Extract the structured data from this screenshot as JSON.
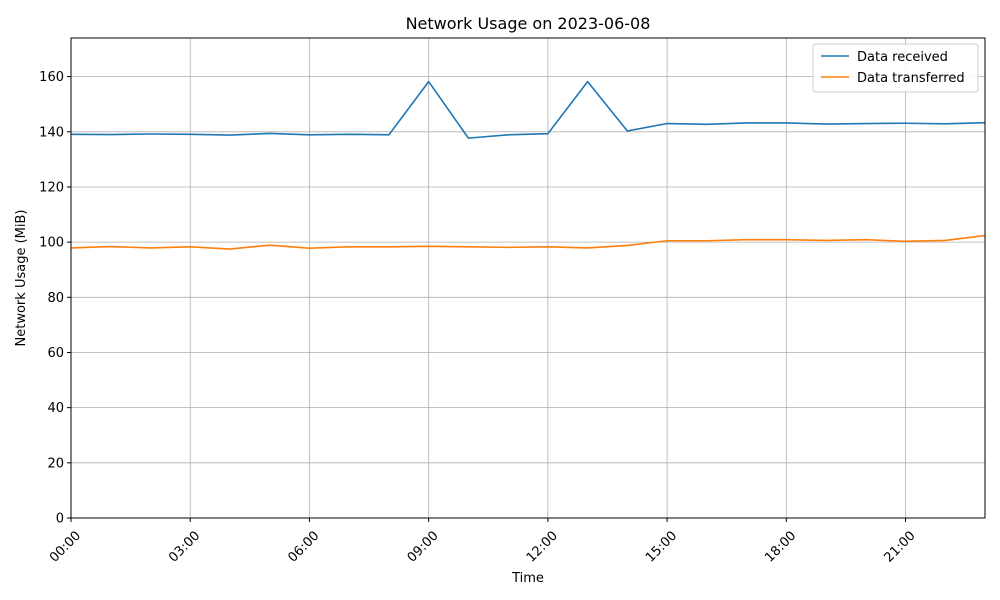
{
  "chart_data": {
    "type": "line",
    "title": "Network Usage on 2023-06-08",
    "xlabel": "Time",
    "ylabel": "Network Usage (MiB)",
    "x": [
      "00:00",
      "01:00",
      "02:00",
      "03:00",
      "04:00",
      "05:00",
      "06:00",
      "07:00",
      "08:00",
      "09:00",
      "10:00",
      "11:00",
      "12:00",
      "13:00",
      "14:00",
      "15:00",
      "16:00",
      "17:00",
      "18:00",
      "19:00",
      "20:00",
      "21:00",
      "22:00",
      "23:00"
    ],
    "x_hours": [
      0,
      1,
      2,
      3,
      4,
      5,
      6,
      7,
      8,
      9,
      10,
      11,
      12,
      13,
      14,
      15,
      16,
      17,
      18,
      19,
      20,
      21,
      22,
      23
    ],
    "xlim": [
      "00:00",
      "23:00"
    ],
    "x_ticks": [
      "00:00",
      "03:00",
      "06:00",
      "09:00",
      "12:00",
      "15:00",
      "18:00",
      "21:00"
    ],
    "ylim": [
      0,
      174
    ],
    "y_ticks": [
      0,
      20,
      40,
      60,
      80,
      100,
      120,
      140,
      160
    ],
    "grid": true,
    "legend_position": "top-right",
    "series": [
      {
        "name": "Data received",
        "color": "#1f77b4",
        "values": [
          139.1,
          139.0,
          139.2,
          139.1,
          138.8,
          139.4,
          138.9,
          139.1,
          138.9,
          158.2,
          137.7,
          138.9,
          139.3,
          158.2,
          140.3,
          143.0,
          142.7,
          143.2,
          143.2,
          142.8,
          143.0,
          143.1,
          142.9,
          143.3
        ]
      },
      {
        "name": "Data transferred",
        "color": "#ff7f0e",
        "values": [
          97.9,
          98.4,
          97.9,
          98.3,
          97.5,
          98.9,
          97.8,
          98.3,
          98.3,
          98.5,
          98.3,
          98.1,
          98.3,
          97.9,
          98.8,
          100.5,
          100.5,
          100.9,
          100.9,
          100.6,
          100.9,
          100.3,
          100.6,
          102.4
        ]
      }
    ]
  }
}
